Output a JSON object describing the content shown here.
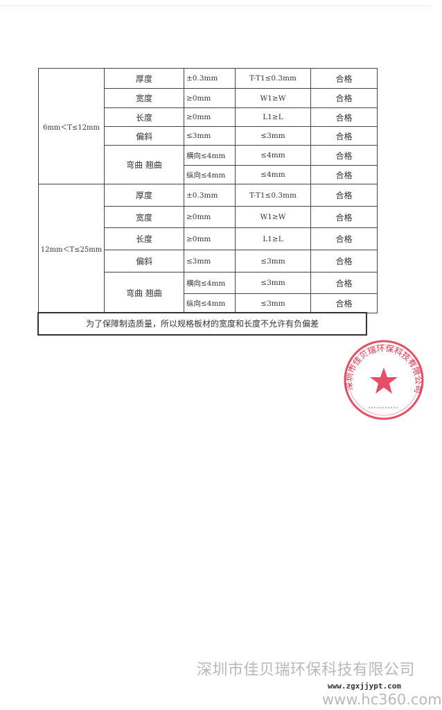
{
  "table": {
    "groups": [
      {
        "range": "6mm＜T≤12mm",
        "rows": [
          {
            "item": "厚度",
            "tolerance": "±0.3mm",
            "measured": "T-T1≤0.3mm",
            "result": "合格"
          },
          {
            "item": "宽度",
            "tolerance": "≥0mm",
            "measured": "W1≥W",
            "result": "合格"
          },
          {
            "item": "长度",
            "tolerance": "≥0mm",
            "measured": "L1≥L",
            "result": "合格"
          },
          {
            "item": "偏斜",
            "tolerance": "≤3mm",
            "measured": "≤3mm",
            "result": "合格"
          },
          {
            "item": "弯曲 翘曲",
            "tolerance": "横向≤4mm",
            "measured": "≤4mm",
            "result": "合格"
          },
          {
            "item": "",
            "tolerance": "纵向≤4mm",
            "measured": "≤4mm",
            "result": "合格"
          }
        ]
      },
      {
        "range": "12mm＜T≤25mm",
        "rows": [
          {
            "item": "厚度",
            "tolerance": "±0.3mm",
            "measured": "T-T1≤0.3mm",
            "result": "合格"
          },
          {
            "item": "宽度",
            "tolerance": "≥0mm",
            "measured": "W1≥W",
            "result": "合格"
          },
          {
            "item": "长度",
            "tolerance": "≥0mm",
            "measured": "L1≥L",
            "result": "合格"
          },
          {
            "item": "偏斜",
            "tolerance": "≤3mm",
            "measured": "≤3mm",
            "result": "合格"
          },
          {
            "item": "弯曲 翘曲",
            "tolerance": "横向≤4mm",
            "measured": "≤3mm",
            "result": "合格"
          },
          {
            "item": "",
            "tolerance": "纵向≤4mm",
            "measured": "≤3mm",
            "result": "合格"
          }
        ]
      }
    ],
    "note": "为了保障制造质量，所以规格板材的宽度和长度不允许有负偏差"
  },
  "seal": {
    "text": "深圳市佳贝瑞环保科技有限公司",
    "color": "#e0304a"
  },
  "watermark": {
    "company": "深圳市佳贝瑞环保科技有限公司",
    "site1": "www.zgxjjypt.com",
    "site2": "www.hc360.com"
  }
}
